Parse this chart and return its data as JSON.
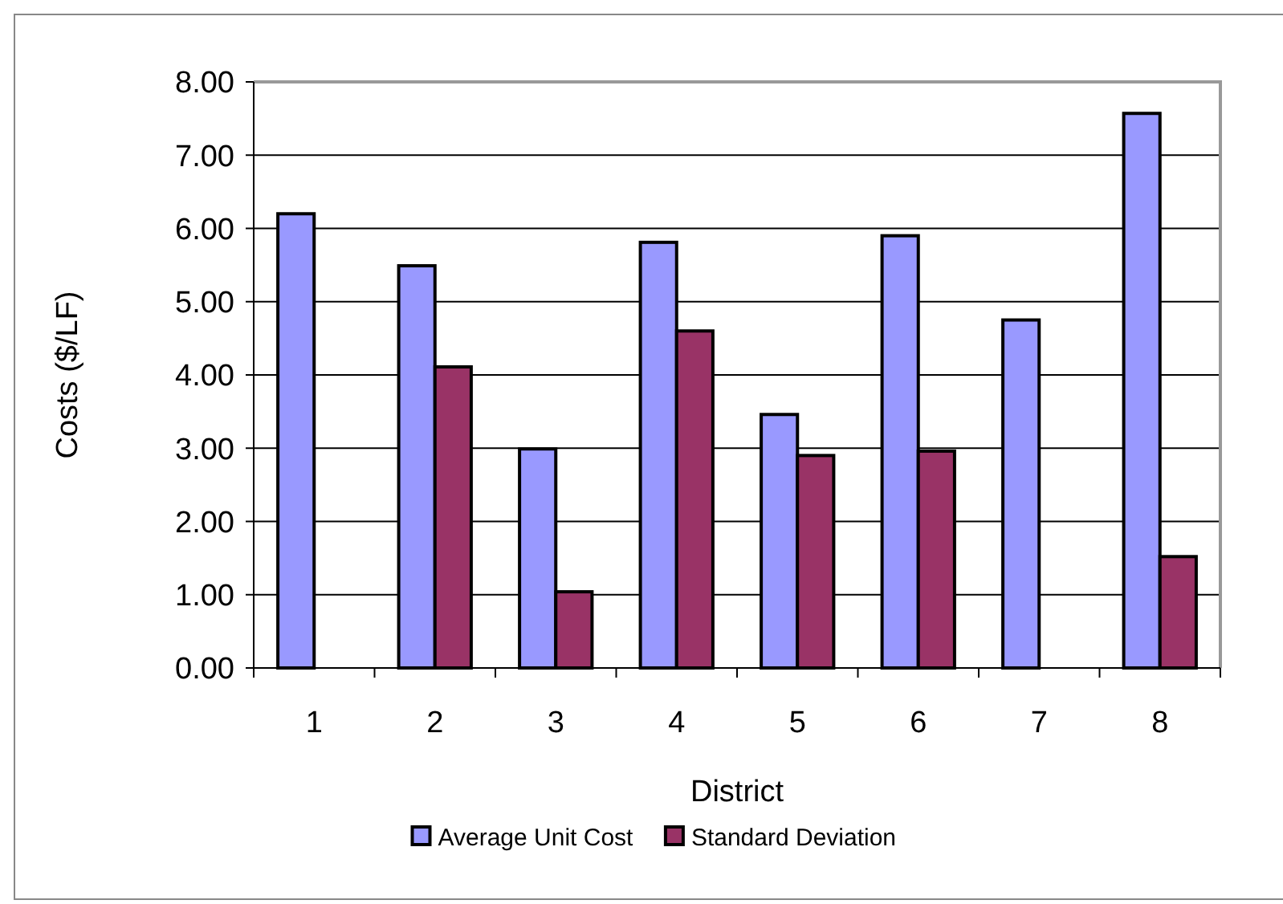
{
  "chart_data": {
    "type": "bar",
    "xlabel": "District",
    "ylabel": "Costs ($/LF)",
    "categories": [
      "1",
      "2",
      "3",
      "4",
      "5",
      "6",
      "7",
      "8"
    ],
    "series": [
      {
        "name": "Average Unit Cost",
        "color": "#9999ff",
        "values": [
          6.2,
          5.49,
          2.99,
          5.81,
          3.46,
          5.9,
          4.75,
          7.57
        ]
      },
      {
        "name": "Standard Deviation",
        "color": "#993366",
        "values": [
          null,
          4.11,
          1.04,
          4.6,
          2.9,
          2.96,
          null,
          1.52
        ]
      }
    ],
    "ylim": [
      0,
      8
    ],
    "yticks": [
      {
        "value": 0,
        "label": "0.00"
      },
      {
        "value": 1,
        "label": "1.00"
      },
      {
        "value": 2,
        "label": "2.00"
      },
      {
        "value": 3,
        "label": "3.00"
      },
      {
        "value": 4,
        "label": "4.00"
      },
      {
        "value": 5,
        "label": "5.00"
      },
      {
        "value": 6,
        "label": "6.00"
      },
      {
        "value": 7,
        "label": "7.00"
      },
      {
        "value": 8,
        "label": "8.00"
      }
    ],
    "grid": "y",
    "legend": "bottom"
  }
}
